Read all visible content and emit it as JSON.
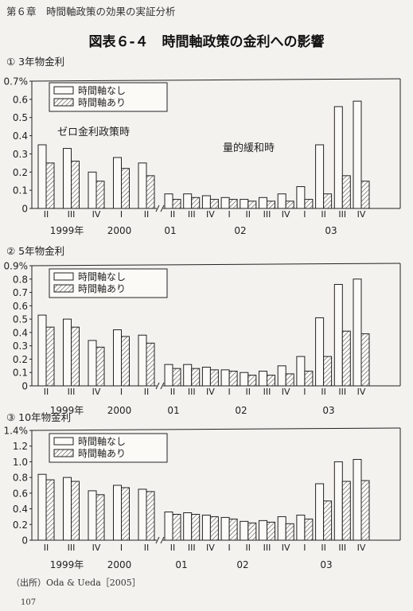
{
  "header": {
    "running_head": "第６章　時間軸政策の効果の実証分析"
  },
  "figure": {
    "title": "図表６-４　時間軸政策の金利への影響"
  },
  "source_note": "（出所）Oda & Ueda［2005］",
  "page_number": "107",
  "chart_data": [
    {
      "type": "bar",
      "title": "① 3年物金利",
      "ylim": [
        0,
        0.7
      ],
      "yticks": [
        "0",
        "0.1",
        "0.2",
        "0.3",
        "0.4",
        "0.5",
        "0.6",
        "0.7%"
      ],
      "categories": [
        "II",
        "III",
        "IV",
        "I",
        "II",
        "II",
        "III",
        "IV",
        "I",
        "II",
        "III",
        "IV",
        "I",
        "II",
        "III",
        "IV"
      ],
      "year_labels": [
        "1999年",
        "2000",
        "01",
        "02",
        "03"
      ],
      "series": [
        {
          "name": "時間軸なし",
          "values": [
            0.35,
            0.33,
            0.2,
            0.28,
            0.25,
            0.08,
            0.08,
            0.07,
            0.06,
            0.05,
            0.06,
            0.08,
            0.12,
            0.35,
            0.56,
            0.59
          ]
        },
        {
          "name": "時間軸あり",
          "values": [
            0.25,
            0.26,
            0.15,
            0.22,
            0.18,
            0.05,
            0.06,
            0.05,
            0.05,
            0.04,
            0.04,
            0.04,
            0.05,
            0.08,
            0.18,
            0.15
          ]
        }
      ],
      "annotations": [
        "ゼロ金利政策時",
        "量的緩和時"
      ]
    },
    {
      "type": "bar",
      "title": "② 5年物金利",
      "ylim": [
        0,
        0.9
      ],
      "yticks": [
        "0",
        "0.1",
        "0.2",
        "0.3",
        "0.4",
        "0.5",
        "0.6",
        "0.7",
        "0.8",
        "0.9%"
      ],
      "categories": [
        "II",
        "III",
        "IV",
        "I",
        "II",
        "II",
        "III",
        "IV",
        "I",
        "II",
        "III",
        "IV",
        "I",
        "II",
        "III",
        "IV"
      ],
      "year_labels": [
        "1999年",
        "2000",
        "01",
        "02",
        "03"
      ],
      "series": [
        {
          "name": "時間軸なし",
          "values": [
            0.53,
            0.5,
            0.34,
            0.42,
            0.38,
            0.16,
            0.16,
            0.14,
            0.12,
            0.1,
            0.11,
            0.15,
            0.22,
            0.51,
            0.76,
            0.8
          ]
        },
        {
          "name": "時間軸あり",
          "values": [
            0.44,
            0.44,
            0.29,
            0.37,
            0.32,
            0.13,
            0.13,
            0.12,
            0.11,
            0.08,
            0.08,
            0.09,
            0.11,
            0.22,
            0.41,
            0.39
          ]
        }
      ]
    },
    {
      "type": "bar",
      "title": "③ 10年物金利",
      "ylim": [
        0,
        1.4
      ],
      "yticks": [
        "0",
        "0.2",
        "0.4",
        "0.6",
        "0.8",
        "1.0",
        "1.2",
        "1.4%"
      ],
      "categories": [
        "II",
        "III",
        "IV",
        "I",
        "II",
        "II",
        "III",
        "IV",
        "I",
        "II",
        "III",
        "IV",
        "I",
        "II",
        "III",
        "IV"
      ],
      "year_labels": [
        "1999年",
        "2000",
        "01",
        "02",
        "03"
      ],
      "series": [
        {
          "name": "時間軸なし",
          "values": [
            0.84,
            0.8,
            0.63,
            0.7,
            0.65,
            0.36,
            0.35,
            0.32,
            0.29,
            0.24,
            0.25,
            0.3,
            0.32,
            0.72,
            1.0,
            1.03
          ]
        },
        {
          "name": "時間軸あり",
          "values": [
            0.77,
            0.75,
            0.58,
            0.67,
            0.62,
            0.33,
            0.33,
            0.3,
            0.27,
            0.22,
            0.23,
            0.21,
            0.27,
            0.5,
            0.75,
            0.76
          ]
        }
      ]
    }
  ]
}
